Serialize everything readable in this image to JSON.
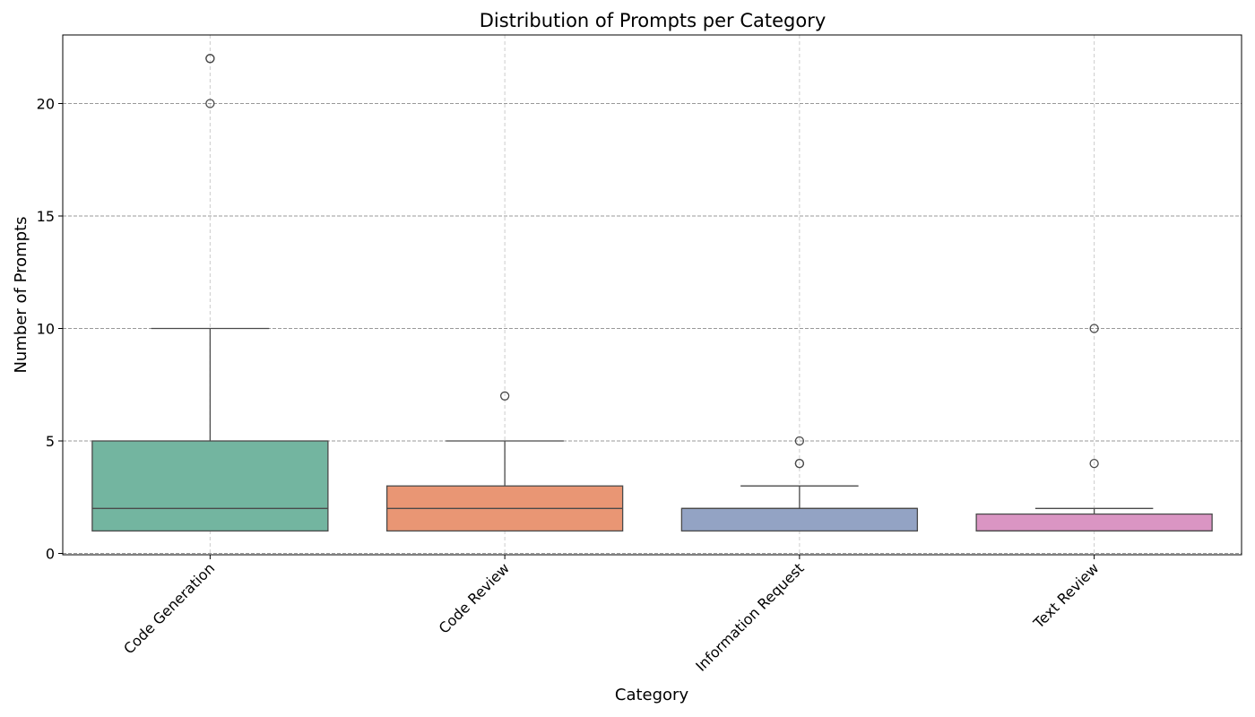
{
  "chart_data": {
    "type": "box",
    "title": "Distribution of Prompts per Category",
    "xlabel": "Category",
    "ylabel": "Number of Prompts",
    "ylim": [
      0,
      23
    ],
    "yticks": [
      0,
      5,
      10,
      15,
      20
    ],
    "grid": true,
    "legend": "none",
    "categories": [
      {
        "name": "Code Generation",
        "color": "#73b5a0",
        "whisker_low": 1,
        "q1": 1,
        "median": 2,
        "q3": 5,
        "whisker_high": 10,
        "outliers": [
          22,
          22,
          20
        ]
      },
      {
        "name": "Code Review",
        "color": "#e99674",
        "whisker_low": 1,
        "q1": 1,
        "median": 2,
        "q3": 3,
        "whisker_high": 5,
        "outliers": [
          7
        ]
      },
      {
        "name": "Information Request",
        "color": "#93a3c4",
        "whisker_low": 1,
        "q1": 1,
        "median": 2,
        "q3": 2,
        "whisker_high": 3,
        "outliers": [
          5,
          4,
          4
        ]
      },
      {
        "name": "Text Review",
        "color": "#da95c3",
        "whisker_low": 1,
        "q1": 1,
        "median": 1,
        "q3": 1.75,
        "whisker_high": 2,
        "outliers": [
          10,
          4
        ]
      }
    ]
  }
}
